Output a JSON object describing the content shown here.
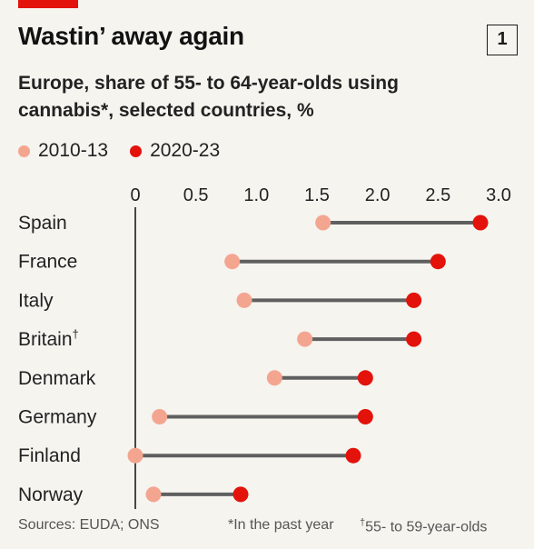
{
  "header": {
    "title": "Wastin’ away again",
    "chart_number": "1",
    "subtitle": "Europe, share of 55- to 64-year-olds using cannabis*, selected countries, %"
  },
  "footer": {
    "sources": "Sources: EUDA; ONS",
    "note1": "*In the past year",
    "note2_mark": "†",
    "note2": "55- to 59-year-olds"
  },
  "colors": {
    "series_2010": "#f4a590",
    "series_2020": "#e3120b",
    "connector": "#5f5f5f",
    "accent_tab": "#e3120b"
  },
  "chart_data": {
    "type": "dumbbell",
    "xlim": [
      0,
      3.0
    ],
    "ticks": [
      "0",
      "0.5",
      "1.0",
      "1.5",
      "2.0",
      "2.5",
      "3.0"
    ],
    "tick_values": [
      0,
      0.5,
      1.0,
      1.5,
      2.0,
      2.5,
      3.0
    ],
    "legend_position": "top-left",
    "categories": [
      "Spain",
      "France",
      "Italy",
      "Britain",
      "Denmark",
      "Germany",
      "Finland",
      "Norway"
    ],
    "category_marks": [
      "",
      "",
      "",
      "†",
      "",
      "",
      "",
      ""
    ],
    "series": [
      {
        "name": "2010-13",
        "values": [
          1.55,
          0.8,
          0.9,
          1.4,
          1.15,
          0.2,
          0.0,
          0.15
        ]
      },
      {
        "name": "2020-23",
        "values": [
          2.85,
          2.5,
          2.3,
          2.3,
          1.9,
          1.9,
          1.8,
          0.87
        ]
      }
    ]
  }
}
